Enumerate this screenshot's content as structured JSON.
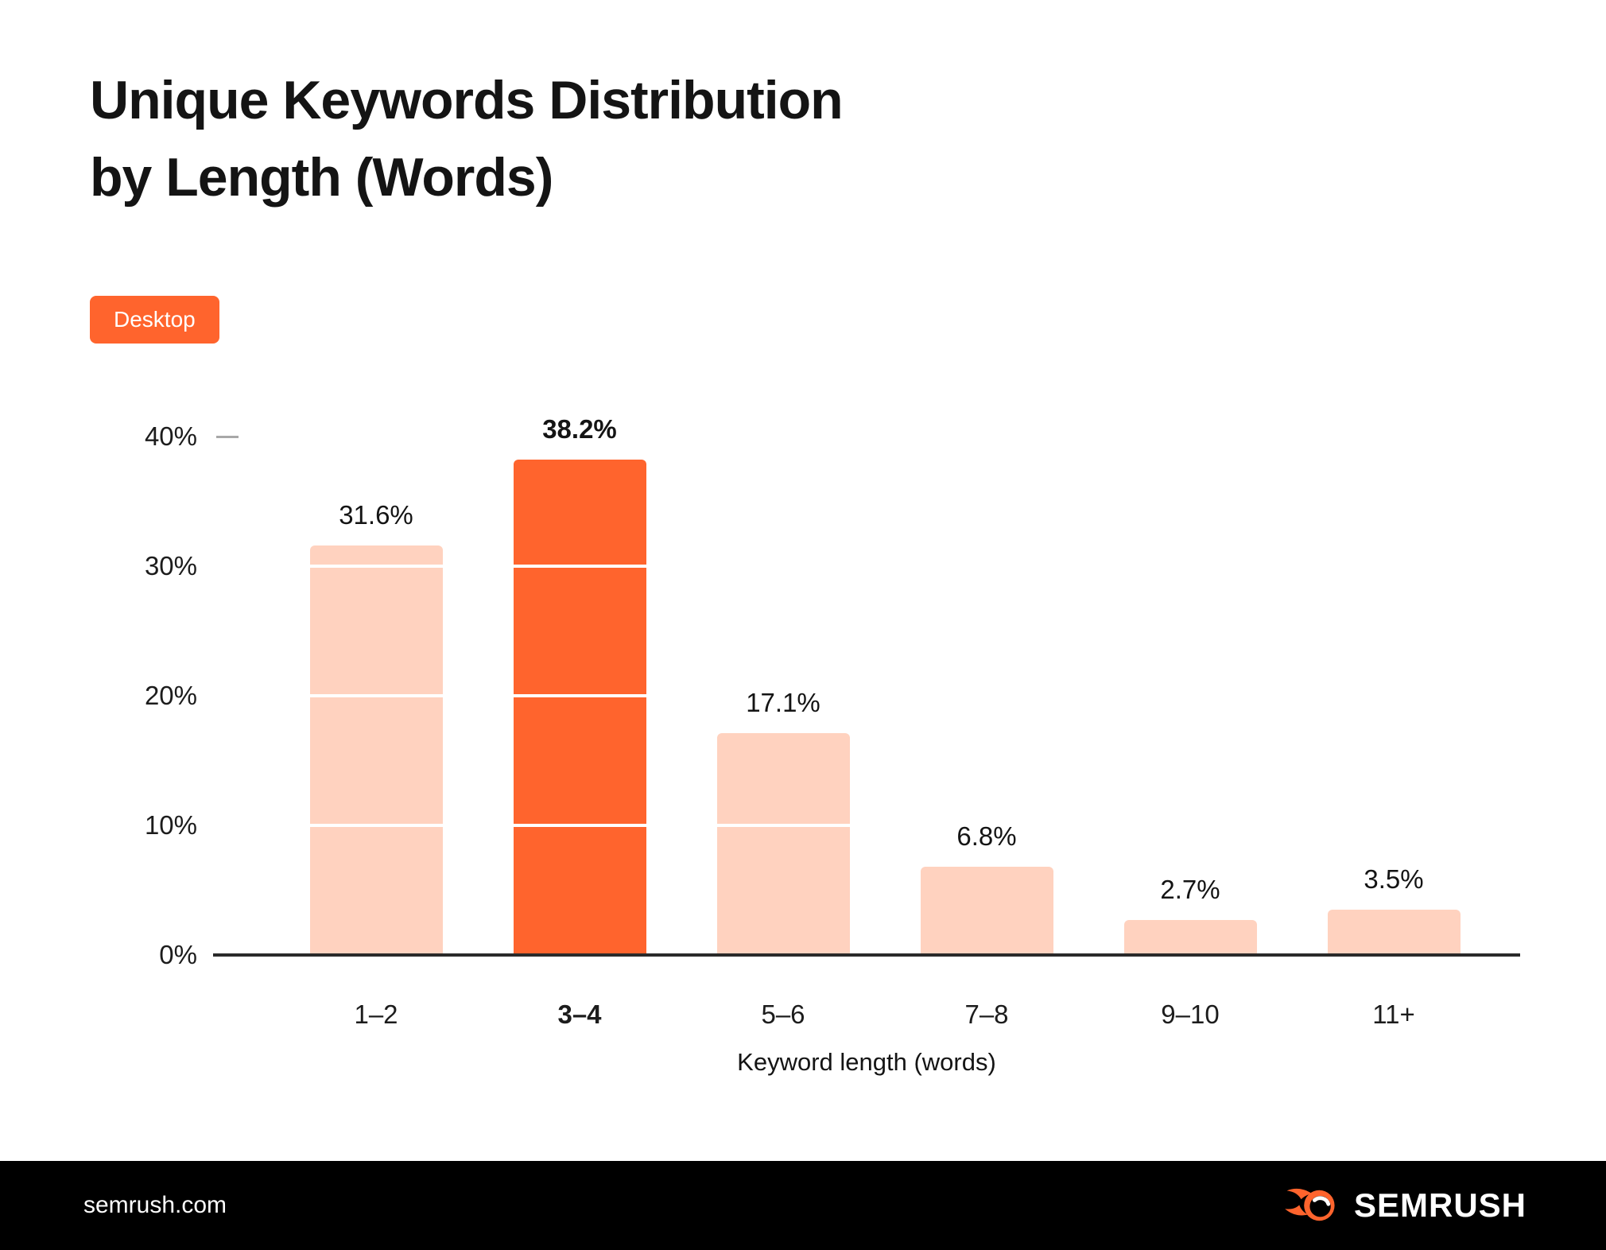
{
  "header": {
    "title_line1": "Unique Keywords Distribution",
    "title_line2": "by Length (Words)",
    "badge": "Desktop"
  },
  "chart_data": {
    "type": "bar",
    "title": "Unique Keywords Distribution by Length (Words)",
    "device_tag": "Desktop",
    "categories": [
      "1–2",
      "3–4",
      "5–6",
      "7–8",
      "9–10",
      "11+"
    ],
    "values": [
      31.6,
      38.2,
      17.1,
      6.8,
      2.7,
      3.5
    ],
    "value_labels": [
      "31.6%",
      "38.2%",
      "17.1%",
      "6.8%",
      "2.7%",
      "3.5%"
    ],
    "highlight_index": 1,
    "xlabel": "Keyword length (words)",
    "ylabel": "",
    "ylim": [
      0,
      40
    ],
    "yticks": [
      0,
      10,
      20,
      30,
      40
    ],
    "ytick_labels": [
      "0%",
      "10%",
      "20%",
      "30%",
      "40%"
    ],
    "grid": "white overlay lines at 10/20/30 visible inside bars",
    "legend_position": "none"
  },
  "footer": {
    "site": "semrush.com",
    "brand": "SEMRUSH"
  },
  "icons": {
    "footer_logo": "semrush-flame-icon"
  },
  "colors": {
    "accent": "#ff642d",
    "bar_light": "#ffd2bf",
    "text": "#141414",
    "axis": "#2a2a2a",
    "tick": "#a8a8a8",
    "gridline": "#ffffff",
    "footer_bg": "#000000"
  }
}
